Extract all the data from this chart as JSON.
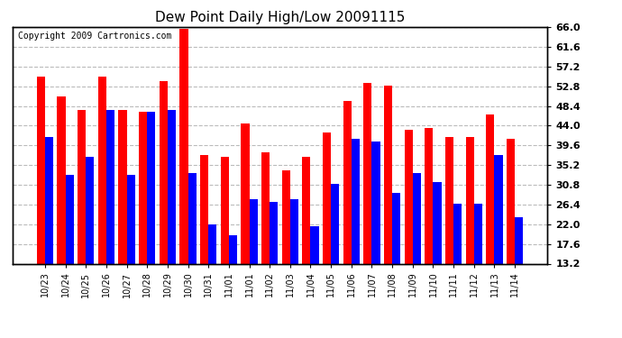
{
  "title": "Dew Point Daily High/Low 20091115",
  "copyright": "Copyright 2009 Cartronics.com",
  "categories": [
    "10/23",
    "10/24",
    "10/25",
    "10/26",
    "10/27",
    "10/28",
    "10/29",
    "10/30",
    "10/31",
    "11/01",
    "11/01",
    "11/02",
    "11/03",
    "11/04",
    "11/05",
    "11/06",
    "11/07",
    "11/08",
    "11/09",
    "11/10",
    "11/11",
    "11/12",
    "11/13",
    "11/14"
  ],
  "high_values": [
    55.0,
    50.5,
    47.5,
    55.0,
    47.5,
    47.0,
    54.0,
    65.5,
    37.5,
    37.0,
    44.5,
    38.0,
    34.0,
    37.0,
    42.5,
    49.5,
    53.5,
    53.0,
    43.0,
    43.5,
    41.5,
    41.5,
    46.5,
    41.0
  ],
  "low_values": [
    41.5,
    33.0,
    37.0,
    47.5,
    33.0,
    47.0,
    47.5,
    33.5,
    22.0,
    19.5,
    27.5,
    27.0,
    27.5,
    21.5,
    31.0,
    41.0,
    40.5,
    29.0,
    33.5,
    31.5,
    26.5,
    26.5,
    37.5,
    23.5
  ],
  "high_color": "#FF0000",
  "low_color": "#0000FF",
  "ylim_min": 13.2,
  "ylim_max": 66.0,
  "yticks": [
    13.2,
    17.6,
    22.0,
    26.4,
    30.8,
    35.2,
    39.6,
    44.0,
    48.4,
    52.8,
    57.2,
    61.6,
    66.0
  ],
  "bg_color": "#FFFFFF",
  "plot_bg_color": "#FFFFFF",
  "grid_color": "#BBBBBB",
  "bar_width": 0.4,
  "title_fontsize": 11,
  "copyright_fontsize": 7,
  "tick_fontsize": 8,
  "xlabel_fontsize": 7
}
